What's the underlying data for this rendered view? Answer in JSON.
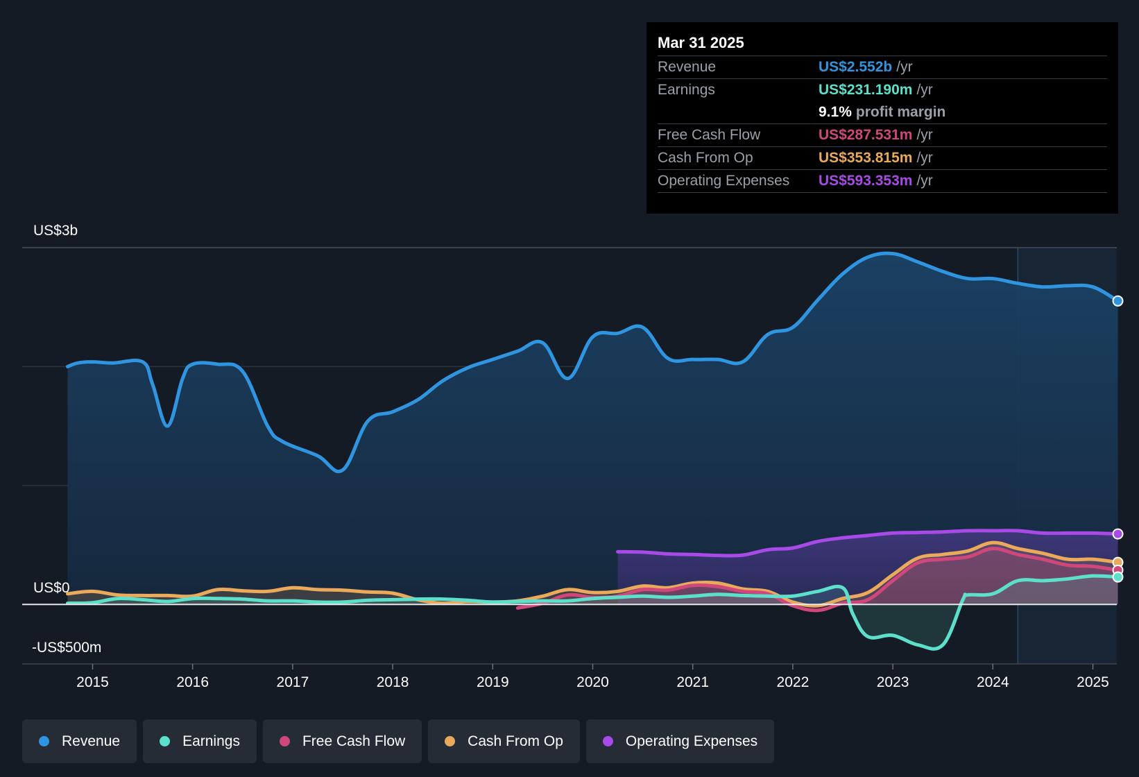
{
  "tooltip": {
    "date": "Mar 31 2025",
    "rows": [
      {
        "label": "Revenue",
        "value": "US$2.552b",
        "unit": "/yr",
        "color": "#2f95e0"
      },
      {
        "label": "Earnings",
        "value": "US$231.190m",
        "unit": "/yr",
        "color": "#5ce0cc"
      },
      {
        "label": "Free Cash Flow",
        "value": "US$287.531m",
        "unit": "/yr",
        "color": "#d0487b"
      },
      {
        "label": "Cash From Op",
        "value": "US$353.815m",
        "unit": "/yr",
        "color": "#eaa95b"
      },
      {
        "label": "Operating Expenses",
        "value": "US$593.353m",
        "unit": "/yr",
        "color": "#a74ae8"
      }
    ],
    "profit_margin_value": "9.1%",
    "profit_margin_label": "profit margin"
  },
  "legend": [
    {
      "label": "Revenue",
      "color": "#2f95e0"
    },
    {
      "label": "Earnings",
      "color": "#5ce0cc"
    },
    {
      "label": "Free Cash Flow",
      "color": "#d0487b"
    },
    {
      "label": "Cash From Op",
      "color": "#eaa95b"
    },
    {
      "label": "Operating Expenses",
      "color": "#a74ae8"
    }
  ],
  "chart_data": {
    "type": "area",
    "title": "",
    "xlabel": "",
    "ylabel": "",
    "y_tick_labels": [
      "US$3b",
      "US$0",
      "-US$500m"
    ],
    "x_tick_labels": [
      "2015",
      "2016",
      "2017",
      "2018",
      "2019",
      "2020",
      "2021",
      "2022",
      "2023",
      "2024",
      "2025"
    ],
    "ylim": [
      -500,
      3000
    ],
    "xlim": [
      2014.3,
      2025.25
    ],
    "grid": true,
    "highlight_from": 2024.25,
    "units": "US$ millions",
    "series": [
      {
        "name": "Revenue",
        "color": "#2f95e0",
        "x": [
          2014.75,
          2014.85,
          2015.0,
          2015.2,
          2015.5,
          2015.6,
          2015.75,
          2015.9,
          2016.0,
          2016.25,
          2016.5,
          2016.75,
          2016.9,
          2017.25,
          2017.5,
          2017.75,
          2018.0,
          2018.25,
          2018.5,
          2018.75,
          2019.0,
          2019.25,
          2019.5,
          2019.75,
          2020.0,
          2020.25,
          2020.5,
          2020.75,
          2021.0,
          2021.25,
          2021.5,
          2021.75,
          2022.0,
          2022.25,
          2022.5,
          2022.75,
          2023.0,
          2023.25,
          2023.5,
          2023.75,
          2024.0,
          2024.25,
          2024.5,
          2024.75,
          2025.0,
          2025.25
        ],
        "y": [
          2000,
          2030,
          2040,
          2030,
          2040,
          1850,
          1500,
          1900,
          2020,
          2020,
          1960,
          1500,
          1370,
          1250,
          1130,
          1540,
          1620,
          1720,
          1880,
          1990,
          2060,
          2130,
          2200,
          1900,
          2250,
          2280,
          2330,
          2070,
          2060,
          2060,
          2040,
          2270,
          2330,
          2560,
          2780,
          2920,
          2950,
          2880,
          2800,
          2740,
          2740,
          2700,
          2670,
          2680,
          2670,
          2552
        ]
      },
      {
        "name": "Operating Expenses",
        "color": "#a74ae8",
        "x": [
          2020.25,
          2020.5,
          2020.75,
          2021.0,
          2021.25,
          2021.5,
          2021.75,
          2022.0,
          2022.25,
          2022.5,
          2022.75,
          2023.0,
          2023.25,
          2023.5,
          2023.75,
          2024.0,
          2024.25,
          2024.5,
          2024.75,
          2025.0,
          2025.25
        ],
        "y": [
          443,
          440,
          425,
          420,
          412,
          415,
          460,
          475,
          530,
          560,
          580,
          600,
          605,
          610,
          620,
          620,
          620,
          600,
          600,
          600,
          593
        ]
      },
      {
        "name": "Cash From Op",
        "color": "#eaa95b",
        "x": [
          2014.75,
          2015.0,
          2015.25,
          2015.5,
          2015.75,
          2016.0,
          2016.25,
          2016.5,
          2016.75,
          2017.0,
          2017.25,
          2017.5,
          2017.75,
          2018.0,
          2018.25,
          2018.5,
          2018.75,
          2019.0,
          2019.25,
          2019.5,
          2019.75,
          2020.0,
          2020.25,
          2020.5,
          2020.75,
          2021.0,
          2021.25,
          2021.5,
          2021.75,
          2022.0,
          2022.25,
          2022.5,
          2022.75,
          2023.0,
          2023.25,
          2023.5,
          2023.75,
          2024.0,
          2024.25,
          2024.5,
          2024.75,
          2025.0,
          2025.25
        ],
        "y": [
          90,
          110,
          80,
          75,
          75,
          70,
          125,
          115,
          110,
          140,
          125,
          120,
          105,
          95,
          40,
          10,
          25,
          20,
          30,
          70,
          125,
          100,
          110,
          155,
          140,
          180,
          180,
          130,
          110,
          20,
          -10,
          50,
          100,
          250,
          390,
          420,
          450,
          520,
          470,
          430,
          380,
          380,
          354
        ]
      },
      {
        "name": "Free Cash Flow",
        "color": "#d0487b",
        "x": [
          2019.25,
          2019.5,
          2019.75,
          2020.0,
          2020.25,
          2020.5,
          2020.75,
          2021.0,
          2021.25,
          2021.5,
          2021.75,
          2022.0,
          2022.25,
          2022.5,
          2022.75,
          2023.0,
          2023.25,
          2023.5,
          2023.75,
          2024.0,
          2024.25,
          2024.5,
          2024.75,
          2025.0,
          2025.25
        ],
        "y": [
          -30,
          10,
          80,
          60,
          70,
          125,
          120,
          160,
          150,
          110,
          90,
          -10,
          -50,
          10,
          40,
          200,
          350,
          380,
          400,
          470,
          420,
          380,
          330,
          320,
          288
        ]
      },
      {
        "name": "Earnings",
        "color": "#5ce0cc",
        "x": [
          2014.75,
          2015.0,
          2015.25,
          2015.5,
          2015.75,
          2016.0,
          2016.25,
          2016.5,
          2016.75,
          2017.0,
          2017.25,
          2017.5,
          2017.75,
          2018.0,
          2018.25,
          2018.5,
          2018.75,
          2019.0,
          2019.25,
          2019.5,
          2019.75,
          2020.0,
          2020.25,
          2020.5,
          2020.75,
          2021.0,
          2021.25,
          2021.5,
          2021.75,
          2022.0,
          2022.25,
          2022.5,
          2022.6,
          2022.75,
          2023.0,
          2023.25,
          2023.5,
          2023.7,
          2023.75,
          2024.0,
          2024.25,
          2024.5,
          2024.75,
          2025.0,
          2025.25
        ],
        "y": [
          10,
          15,
          50,
          40,
          25,
          50,
          50,
          45,
          30,
          30,
          20,
          20,
          35,
          40,
          45,
          45,
          35,
          20,
          25,
          30,
          30,
          50,
          60,
          70,
          60,
          70,
          85,
          75,
          70,
          70,
          110,
          140,
          -80,
          -270,
          -260,
          -340,
          -340,
          40,
          80,
          90,
          200,
          200,
          215,
          240,
          231
        ]
      }
    ]
  }
}
